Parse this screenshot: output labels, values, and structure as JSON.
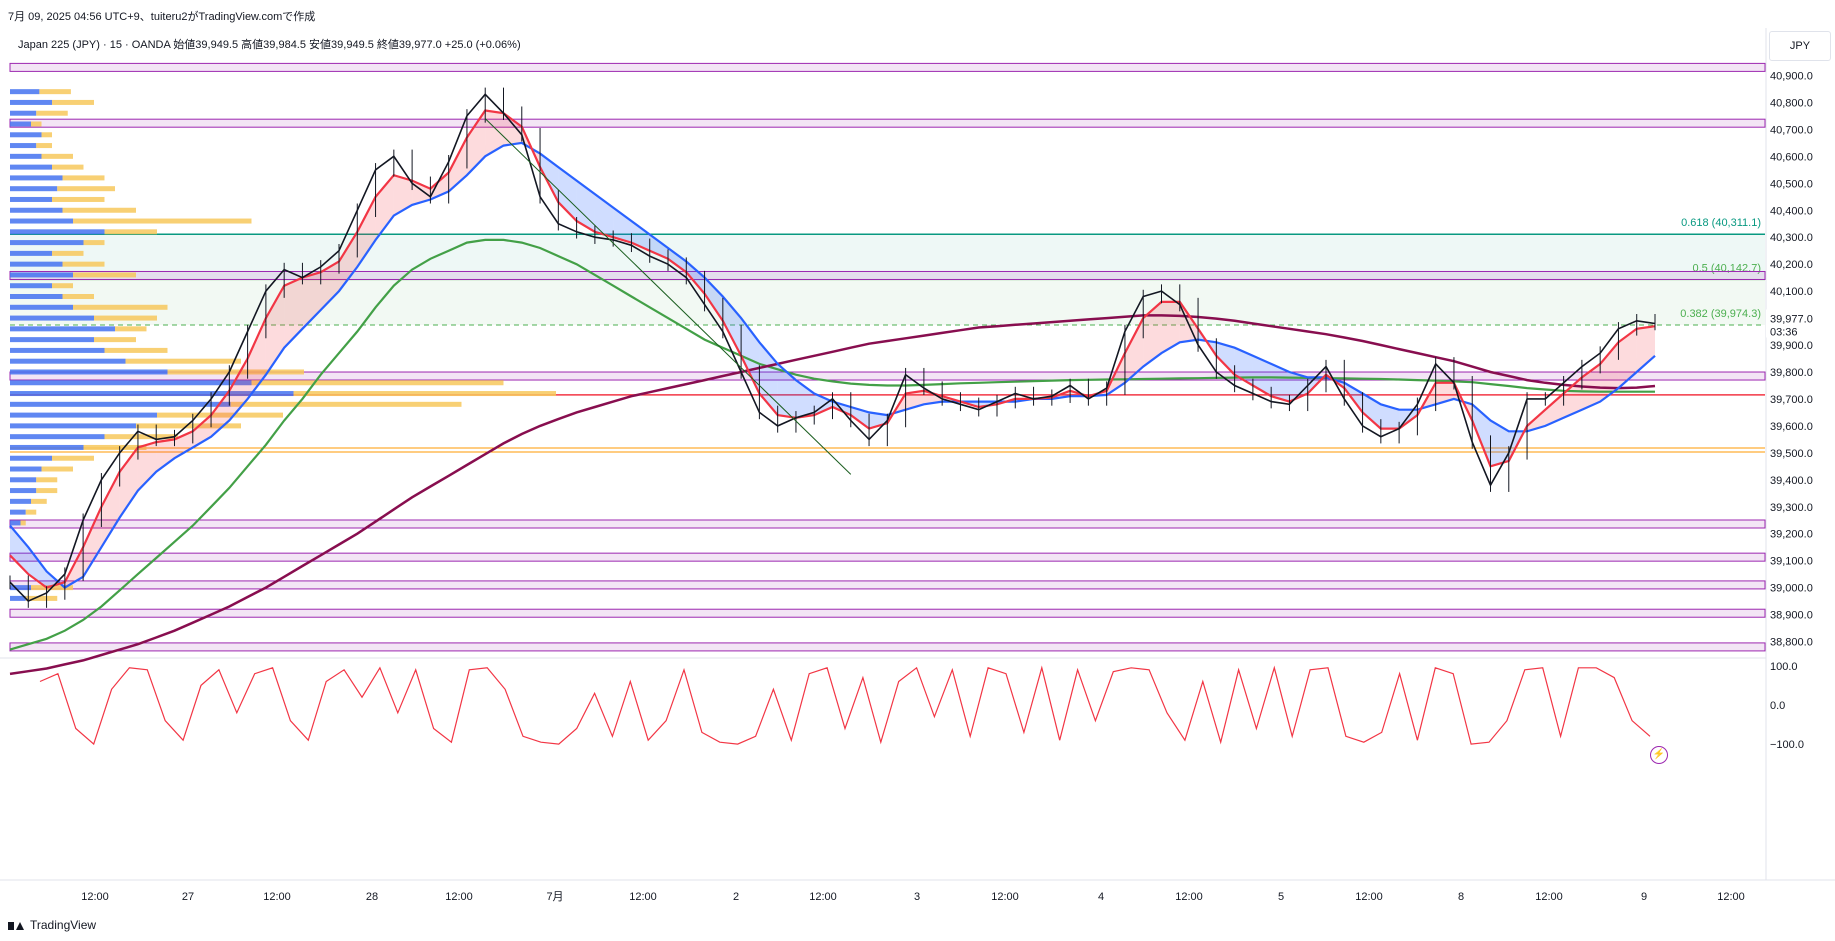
{
  "header": {
    "timestamp": "7月 09, 2025 04:56 UTC+9、tuiteru2がTradingView.comで作成",
    "symbol_line": "Japan 225 (JPY) · 15 · OANDA  始値39,949.5  高値39,984.5  安値39,949.5  終値39,977.0  +25.0 (+0.06%)",
    "currency": "JPY"
  },
  "footer": {
    "brand": "TradingView"
  },
  "price_marker": {
    "value": "39,977.0",
    "countdown": "03:36",
    "color": "#e91e63"
  },
  "colors": {
    "up_candle": "#131722",
    "ema_fast": "#f23645",
    "ema_slow": "#2962ff",
    "sma_green": "#43a047",
    "sma_maroon": "#880e4f",
    "sr_band": "#9c27b0",
    "fib_0618": "#089981",
    "fib_05": "#4caf50",
    "fib_0382": "#4caf50",
    "vp_up": "#4472f0",
    "vp_down": "#f7c85c",
    "red_level": "#f23645",
    "orange_level": "#ff9800",
    "oscillator": "#f23645"
  },
  "chart_data": {
    "type": "line",
    "title": "",
    "xlabel": "",
    "ylabel": "",
    "x_ticks": [
      "12:00",
      "27",
      "12:00",
      "28",
      "12:00",
      "7月",
      "12:00",
      "2",
      "12:00",
      "3",
      "12:00",
      "4",
      "12:00",
      "5",
      "12:00",
      "8",
      "12:00",
      "9",
      "12:00"
    ],
    "y_ticks": [
      "40,900.0",
      "40,800.0",
      "40,700.0",
      "40,600.0",
      "40,500.0",
      "40,400.0",
      "40,300.0",
      "40,200.0",
      "40,100.0",
      "40,000.0",
      "39,900.0",
      "39,800.0",
      "39,700.0",
      "39,600.0",
      "39,500.0",
      "39,400.0",
      "39,300.0",
      "39,200.0",
      "39,100.0",
      "39,000.0",
      "38,900.0",
      "38,800.0"
    ],
    "ylim": [
      38750,
      40950
    ],
    "oscillator_ticks": [
      "100.0",
      "0.0",
      "−100.0"
    ],
    "oscillator_ylim": [
      -115,
      115
    ],
    "fib_levels": [
      {
        "label": "0.618 (40,311.1)",
        "value": 40311.1
      },
      {
        "label": "0.5 (40,142.7)",
        "value": 40142.7
      },
      {
        "label": "0.382 (39,974.3)",
        "value": 39974.3
      }
    ],
    "sr_bands": [
      40930,
      40723,
      40158,
      39785,
      39236,
      39113,
      39010,
      38905,
      38780
    ],
    "horizontal_levels": [
      {
        "name": "red",
        "value": 39715
      },
      {
        "name": "orange",
        "value": 39518
      },
      {
        "name": "orange2",
        "value": 39503
      }
    ],
    "series": [
      {
        "name": "price",
        "values": [
          39020,
          38950,
          38980,
          39050,
          39250,
          39400,
          39500,
          39580,
          39550,
          39560,
          39620,
          39700,
          39800,
          39950,
          40100,
          40180,
          40150,
          40190,
          40250,
          40400,
          40550,
          40600,
          40500,
          40450,
          40580,
          40750,
          40830,
          40760,
          40680,
          40450,
          40350,
          40320,
          40300,
          40290,
          40270,
          40230,
          40200,
          40150,
          40050,
          39950,
          39800,
          39650,
          39600,
          39630,
          39650,
          39700,
          39620,
          39550,
          39620,
          39790,
          39740,
          39700,
          39680,
          39660,
          39690,
          39720,
          39700,
          39710,
          39750,
          39700,
          39740,
          39950,
          40080,
          40100,
          40050,
          39900,
          39800,
          39750,
          39720,
          39690,
          39680,
          39750,
          39820,
          39700,
          39600,
          39560,
          39590,
          39680,
          39830,
          39760,
          39540,
          39380,
          39500,
          39700,
          39700,
          39760,
          39820,
          39870,
          39960,
          39990,
          39980
        ]
      },
      {
        "name": "ema-fast",
        "values": [
          39120,
          39050,
          39000,
          39020,
          39150,
          39300,
          39430,
          39520,
          39540,
          39550,
          39580,
          39640,
          39730,
          39850,
          40000,
          40120,
          40150,
          40170,
          40210,
          40320,
          40450,
          40530,
          40510,
          40480,
          40540,
          40670,
          40770,
          40760,
          40710,
          40560,
          40430,
          40360,
          40320,
          40300,
          40280,
          40250,
          40220,
          40170,
          40090,
          39990,
          39860,
          39720,
          39640,
          39630,
          39640,
          39670,
          39640,
          39590,
          39610,
          39720,
          39730,
          39710,
          39690,
          39670,
          39680,
          39700,
          39700,
          39705,
          39730,
          39710,
          39730,
          39870,
          40000,
          40060,
          40060,
          39960,
          39860,
          39790,
          39750,
          39710,
          39690,
          39720,
          39790,
          39740,
          39650,
          39590,
          39590,
          39640,
          39760,
          39760,
          39620,
          39450,
          39470,
          39600,
          39660,
          39720,
          39780,
          39830,
          39910,
          39960,
          39970
        ]
      },
      {
        "name": "ema-slow",
        "values": [
          39230,
          39150,
          39060,
          39000,
          39040,
          39150,
          39260,
          39360,
          39430,
          39480,
          39520,
          39560,
          39620,
          39700,
          39790,
          39890,
          39960,
          40030,
          40100,
          40190,
          40290,
          40380,
          40420,
          40440,
          40470,
          40530,
          40600,
          40640,
          40650,
          40610,
          40560,
          40510,
          40460,
          40410,
          40360,
          40310,
          40260,
          40210,
          40150,
          40080,
          40000,
          39910,
          39830,
          39770,
          39720,
          39690,
          39670,
          39650,
          39640,
          39660,
          39680,
          39690,
          39690,
          39690,
          39690,
          39690,
          39700,
          39700,
          39710,
          39710,
          39715,
          39760,
          39820,
          39870,
          39910,
          39920,
          39910,
          39890,
          39860,
          39830,
          39800,
          39780,
          39780,
          39760,
          39720,
          39680,
          39660,
          39660,
          39680,
          39700,
          39680,
          39620,
          39580,
          39580,
          39600,
          39630,
          39660,
          39690,
          39740,
          39800,
          39860
        ]
      },
      {
        "name": "sma-green",
        "values": [
          38770,
          38790,
          38810,
          38840,
          38880,
          38930,
          38990,
          39050,
          39110,
          39170,
          39230,
          39300,
          39370,
          39450,
          39530,
          39620,
          39700,
          39790,
          39870,
          39950,
          40040,
          40120,
          40180,
          40220,
          40250,
          40280,
          40290,
          40290,
          40280,
          40260,
          40230,
          40200,
          40160,
          40120,
          40080,
          40040,
          40000,
          39960,
          39920,
          39890,
          39860,
          39830,
          39810,
          39790,
          39775,
          39765,
          39757,
          39752,
          39750,
          39750,
          39752,
          39755,
          39758,
          39760,
          39762,
          39764,
          39766,
          39768,
          39770,
          39771,
          39772,
          39773,
          39774,
          39775,
          39776,
          39777,
          39778,
          39779,
          39780,
          39780,
          39779,
          39778,
          39777,
          39776,
          39775,
          39774,
          39772,
          39770,
          39768,
          39765,
          39762,
          39755,
          39748,
          39740,
          39735,
          39730,
          39728,
          39727,
          39727,
          39727,
          39727
        ]
      },
      {
        "name": "sma-maroon",
        "values": [
          38680,
          38690,
          38700,
          38715,
          38730,
          38750,
          38770,
          38790,
          38815,
          38840,
          38870,
          38900,
          38930,
          38965,
          39000,
          39040,
          39080,
          39120,
          39160,
          39200,
          39245,
          39290,
          39335,
          39375,
          39415,
          39455,
          39495,
          39535,
          39570,
          39600,
          39625,
          39650,
          39670,
          39690,
          39710,
          39725,
          39740,
          39755,
          39770,
          39785,
          39800,
          39815,
          39830,
          39845,
          39860,
          39875,
          39890,
          39905,
          39915,
          39925,
          39935,
          39945,
          39955,
          39965,
          39970,
          39975,
          39980,
          39985,
          39990,
          39995,
          40000,
          40005,
          40010,
          40010,
          40008,
          40004,
          39998,
          39990,
          39980,
          39970,
          39960,
          39950,
          39940,
          39928,
          39915,
          39900,
          39885,
          39870,
          39855,
          39840,
          39820,
          39800,
          39785,
          39770,
          39760,
          39752,
          39746,
          39742,
          39740,
          39742,
          39748
        ]
      },
      {
        "name": "oscillator",
        "values": [
          60,
          80,
          -60,
          -100,
          40,
          95,
          90,
          -40,
          -90,
          50,
          90,
          -20,
          80,
          95,
          -40,
          -90,
          60,
          90,
          20,
          95,
          -20,
          90,
          -60,
          -95,
          90,
          95,
          40,
          -80,
          -95,
          -100,
          -60,
          30,
          -80,
          60,
          -90,
          -40,
          90,
          -70,
          -95,
          -100,
          -80,
          40,
          -90,
          80,
          95,
          -60,
          70,
          -95,
          60,
          95,
          -30,
          90,
          -80,
          95,
          80,
          -70,
          95,
          -90,
          90,
          -40,
          85,
          95,
          90,
          -20,
          -90,
          60,
          -95,
          90,
          -60,
          95,
          -80,
          90,
          95,
          -80,
          -95,
          -70,
          80,
          -90,
          95,
          80,
          -100,
          -95,
          -40,
          90,
          95,
          -80,
          95,
          95,
          70,
          -40,
          -80
        ]
      }
    ],
    "volume_profile": [
      {
        "price": 40840,
        "up": 28,
        "down": 30
      },
      {
        "price": 40800,
        "up": 40,
        "down": 40
      },
      {
        "price": 40760,
        "up": 25,
        "down": 30
      },
      {
        "price": 40720,
        "up": 20,
        "down": 10
      },
      {
        "price": 40680,
        "up": 30,
        "down": 10
      },
      {
        "price": 40640,
        "up": 25,
        "down": 15
      },
      {
        "price": 40600,
        "up": 30,
        "down": 30
      },
      {
        "price": 40560,
        "up": 40,
        "down": 30
      },
      {
        "price": 40520,
        "up": 50,
        "down": 40
      },
      {
        "price": 40480,
        "up": 45,
        "down": 55
      },
      {
        "price": 40440,
        "up": 40,
        "down": 50
      },
      {
        "price": 40400,
        "up": 50,
        "down": 70
      },
      {
        "price": 40360,
        "up": 60,
        "down": 170
      },
      {
        "price": 40320,
        "up": 90,
        "down": 50
      },
      {
        "price": 40280,
        "up": 70,
        "down": 20
      },
      {
        "price": 40240,
        "up": 40,
        "down": 30
      },
      {
        "price": 40200,
        "up": 50,
        "down": 40
      },
      {
        "price": 40160,
        "up": 60,
        "down": 60
      },
      {
        "price": 40120,
        "up": 40,
        "down": 20
      },
      {
        "price": 40080,
        "up": 50,
        "down": 30
      },
      {
        "price": 40040,
        "up": 60,
        "down": 90
      },
      {
        "price": 40000,
        "up": 80,
        "down": 60
      },
      {
        "price": 39960,
        "up": 100,
        "down": 30
      },
      {
        "price": 39920,
        "up": 80,
        "down": 40
      },
      {
        "price": 39880,
        "up": 90,
        "down": 60
      },
      {
        "price": 39840,
        "up": 110,
        "down": 110
      },
      {
        "price": 39800,
        "up": 150,
        "down": 130
      },
      {
        "price": 39760,
        "up": 230,
        "down": 240
      },
      {
        "price": 39720,
        "up": 270,
        "down": 250
      },
      {
        "price": 39680,
        "up": 210,
        "down": 220
      },
      {
        "price": 39640,
        "up": 140,
        "down": 120
      },
      {
        "price": 39600,
        "up": 120,
        "down": 100
      },
      {
        "price": 39560,
        "up": 90,
        "down": 70
      },
      {
        "price": 39520,
        "up": 70,
        "down": 60
      },
      {
        "price": 39480,
        "up": 40,
        "down": 40
      },
      {
        "price": 39440,
        "up": 30,
        "down": 30
      },
      {
        "price": 39400,
        "up": 25,
        "down": 20
      },
      {
        "price": 39360,
        "up": 25,
        "down": 20
      },
      {
        "price": 39320,
        "up": 20,
        "down": 15
      },
      {
        "price": 39280,
        "up": 15,
        "down": 10
      },
      {
        "price": 39240,
        "up": 10,
        "down": 5
      },
      {
        "price": 39000,
        "up": 20,
        "down": 40
      },
      {
        "price": 38960,
        "up": 15,
        "down": 30
      }
    ],
    "trendlines": [
      {
        "name": "down-trendline",
        "from": [
          26,
          40740
        ],
        "to": [
          46,
          39420
        ]
      }
    ]
  }
}
